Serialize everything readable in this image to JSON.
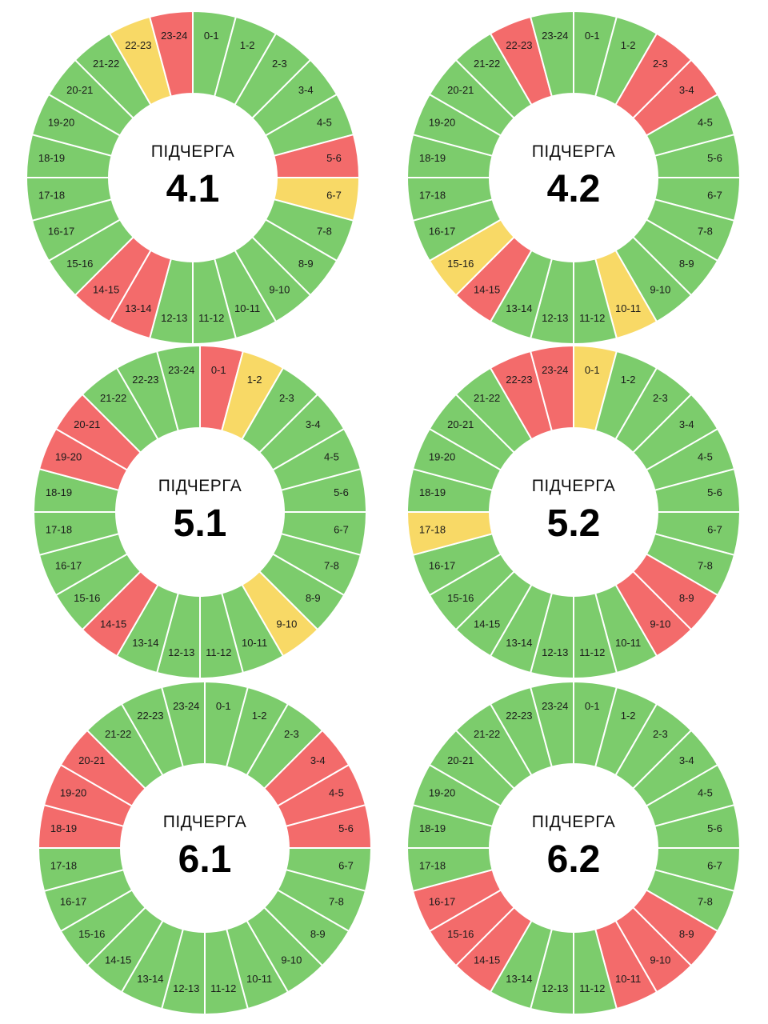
{
  "colors": {
    "on": "#7ccc6c",
    "off": "#f36b6b",
    "maybe": "#f8d966",
    "stroke": "#ffffff"
  },
  "chart_data": [
    {
      "type": "pie",
      "subtitle": "ПІДЧЕРГА",
      "title": "4.1",
      "categories": [
        "0-1",
        "1-2",
        "2-3",
        "3-4",
        "4-5",
        "5-6",
        "6-7",
        "7-8",
        "8-9",
        "9-10",
        "10-11",
        "11-12",
        "12-13",
        "13-14",
        "14-15",
        "15-16",
        "16-17",
        "17-18",
        "18-19",
        "19-20",
        "20-21",
        "21-22",
        "22-23",
        "23-24"
      ],
      "values": [
        1,
        1,
        1,
        1,
        1,
        1,
        1,
        1,
        1,
        1,
        1,
        1,
        1,
        1,
        1,
        1,
        1,
        1,
        1,
        1,
        1,
        1,
        1,
        1
      ],
      "status": [
        "on",
        "on",
        "on",
        "on",
        "on",
        "off",
        "maybe",
        "on",
        "on",
        "on",
        "on",
        "on",
        "on",
        "off",
        "off",
        "on",
        "on",
        "on",
        "on",
        "on",
        "on",
        "on",
        "maybe",
        "off"
      ]
    },
    {
      "type": "pie",
      "subtitle": "ПІДЧЕРГА",
      "title": "4.2",
      "categories": [
        "0-1",
        "1-2",
        "2-3",
        "3-4",
        "4-5",
        "5-6",
        "6-7",
        "7-8",
        "8-9",
        "9-10",
        "10-11",
        "11-12",
        "12-13",
        "13-14",
        "14-15",
        "15-16",
        "16-17",
        "17-18",
        "18-19",
        "19-20",
        "20-21",
        "21-22",
        "22-23",
        "23-24"
      ],
      "values": [
        1,
        1,
        1,
        1,
        1,
        1,
        1,
        1,
        1,
        1,
        1,
        1,
        1,
        1,
        1,
        1,
        1,
        1,
        1,
        1,
        1,
        1,
        1,
        1
      ],
      "status": [
        "on",
        "on",
        "off",
        "off",
        "on",
        "on",
        "on",
        "on",
        "on",
        "on",
        "maybe",
        "on",
        "on",
        "on",
        "off",
        "maybe",
        "on",
        "on",
        "on",
        "on",
        "on",
        "on",
        "off",
        "on"
      ]
    },
    {
      "type": "pie",
      "subtitle": "ПІДЧЕРГА",
      "title": "5.1",
      "categories": [
        "0-1",
        "1-2",
        "2-3",
        "3-4",
        "4-5",
        "5-6",
        "6-7",
        "7-8",
        "8-9",
        "9-10",
        "10-11",
        "11-12",
        "12-13",
        "13-14",
        "14-15",
        "15-16",
        "16-17",
        "17-18",
        "18-19",
        "19-20",
        "20-21",
        "21-22",
        "22-23",
        "23-24"
      ],
      "values": [
        1,
        1,
        1,
        1,
        1,
        1,
        1,
        1,
        1,
        1,
        1,
        1,
        1,
        1,
        1,
        1,
        1,
        1,
        1,
        1,
        1,
        1,
        1,
        1
      ],
      "status": [
        "off",
        "maybe",
        "on",
        "on",
        "on",
        "on",
        "on",
        "on",
        "on",
        "maybe",
        "on",
        "on",
        "on",
        "on",
        "off",
        "on",
        "on",
        "on",
        "on",
        "off",
        "off",
        "on",
        "on",
        "on"
      ]
    },
    {
      "type": "pie",
      "subtitle": "ПІДЧЕРГА",
      "title": "5.2",
      "categories": [
        "0-1",
        "1-2",
        "2-3",
        "3-4",
        "4-5",
        "5-6",
        "6-7",
        "7-8",
        "8-9",
        "9-10",
        "10-11",
        "11-12",
        "12-13",
        "13-14",
        "14-15",
        "15-16",
        "16-17",
        "17-18",
        "18-19",
        "19-20",
        "20-21",
        "21-22",
        "22-23",
        "23-24"
      ],
      "values": [
        1,
        1,
        1,
        1,
        1,
        1,
        1,
        1,
        1,
        1,
        1,
        1,
        1,
        1,
        1,
        1,
        1,
        1,
        1,
        1,
        1,
        1,
        1,
        1
      ],
      "status": [
        "maybe",
        "on",
        "on",
        "on",
        "on",
        "on",
        "on",
        "on",
        "off",
        "off",
        "on",
        "on",
        "on",
        "on",
        "on",
        "on",
        "on",
        "maybe",
        "on",
        "on",
        "on",
        "on",
        "off",
        "off"
      ]
    },
    {
      "type": "pie",
      "subtitle": "ПІДЧЕРГА",
      "title": "6.1",
      "categories": [
        "0-1",
        "1-2",
        "2-3",
        "3-4",
        "4-5",
        "5-6",
        "6-7",
        "7-8",
        "8-9",
        "9-10",
        "10-11",
        "11-12",
        "12-13",
        "13-14",
        "14-15",
        "15-16",
        "16-17",
        "17-18",
        "18-19",
        "19-20",
        "20-21",
        "21-22",
        "22-23",
        "23-24"
      ],
      "values": [
        1,
        1,
        1,
        1,
        1,
        1,
        1,
        1,
        1,
        1,
        1,
        1,
        1,
        1,
        1,
        1,
        1,
        1,
        1,
        1,
        1,
        1,
        1,
        1
      ],
      "status": [
        "on",
        "on",
        "on",
        "off",
        "off",
        "off",
        "on",
        "on",
        "on",
        "on",
        "on",
        "on",
        "on",
        "on",
        "on",
        "on",
        "on",
        "on",
        "off",
        "off",
        "off",
        "on",
        "on",
        "on"
      ]
    },
    {
      "type": "pie",
      "subtitle": "ПІДЧЕРГА",
      "title": "6.2",
      "categories": [
        "0-1",
        "1-2",
        "2-3",
        "3-4",
        "4-5",
        "5-6",
        "6-7",
        "7-8",
        "8-9",
        "9-10",
        "10-11",
        "11-12",
        "12-13",
        "13-14",
        "14-15",
        "15-16",
        "16-17",
        "17-18",
        "18-19",
        "19-20",
        "20-21",
        "21-22",
        "22-23",
        "23-24"
      ],
      "values": [
        1,
        1,
        1,
        1,
        1,
        1,
        1,
        1,
        1,
        1,
        1,
        1,
        1,
        1,
        1,
        1,
        1,
        1,
        1,
        1,
        1,
        1,
        1,
        1
      ],
      "status": [
        "on",
        "on",
        "on",
        "on",
        "on",
        "on",
        "on",
        "on",
        "off",
        "off",
        "off",
        "on",
        "on",
        "on",
        "off",
        "off",
        "off",
        "on",
        "on",
        "on",
        "on",
        "on",
        "on",
        "on"
      ]
    }
  ]
}
